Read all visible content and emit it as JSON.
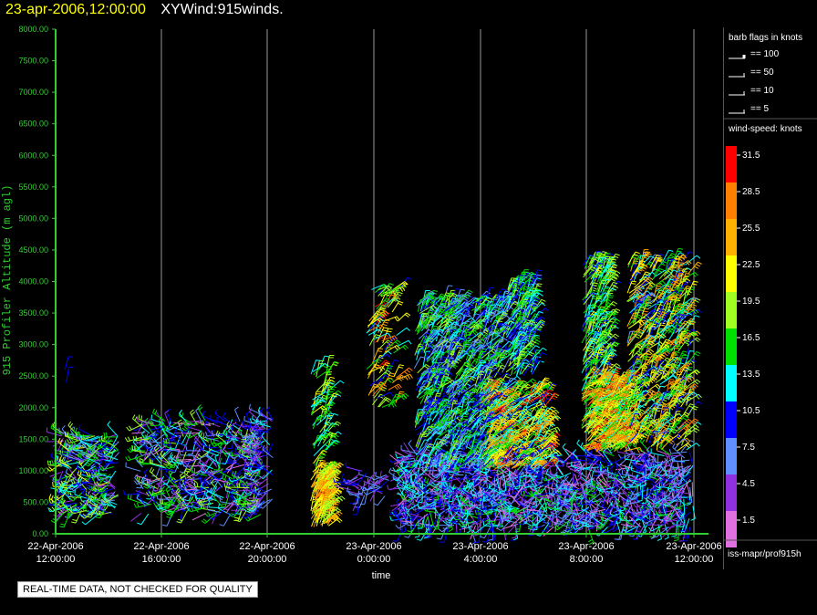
{
  "header": {
    "date": "23-apr-2006",
    "sep": ",",
    "time": "12:00:00",
    "product": "XYWind:915winds."
  },
  "legend": {
    "barb_title": "barb flags in knots",
    "barb_entries": [
      "== 100",
      "== 50",
      "== 10",
      "== 5"
    ],
    "speed_title": "wind-speed: knots",
    "speed_labels": [
      "31.5",
      "28.5",
      "25.5",
      "22.5",
      "19.5",
      "16.5",
      "13.5",
      "10.5",
      "7.5",
      "4.5",
      "1.5"
    ],
    "speed_colors": [
      "#ff0000",
      "#ff8000",
      "#ffb000",
      "#ffff00",
      "#a0ff20",
      "#00e000",
      "#00ffff",
      "#0000ff",
      "#6090ff",
      "#9030e0",
      "#e070e0"
    ],
    "source": "iss-mapr/prof915h"
  },
  "footer": {
    "qc_note": "REAL-TIME DATA, NOT CHECKED FOR QUALITY"
  },
  "colors": {
    "axis": "#33cc33",
    "grid": "#999999",
    "tick_label": "#33cc33",
    "x_label": "#ffffff",
    "title_date": "#ffff00",
    "title_product": "#ffffff"
  },
  "chart_data": {
    "type": "scatter",
    "subtype": "wind-barb time-height",
    "title": "23-apr-2006,12:00:00  XYWind:915winds.",
    "xlabel": "time",
    "ylabel": "915 Profiler Altitude (m agl)",
    "ylim": [
      0,
      8000
    ],
    "y_ticks": [
      "0.00",
      "500.00",
      "1000.00",
      "1500.00",
      "2000.00",
      "2500.00",
      "3000.00",
      "3500.00",
      "4000.00",
      "4500.00",
      "5000.00",
      "5500.00",
      "6000.00",
      "6500.00",
      "7000.00",
      "7500.00",
      "8000.00"
    ],
    "x_ticks": [
      {
        "date": "22-Apr-2006",
        "time": "12:00:00"
      },
      {
        "date": "22-Apr-2006",
        "time": "16:00:00"
      },
      {
        "date": "22-Apr-2006",
        "time": "20:00:00"
      },
      {
        "date": "23-Apr-2006",
        "time": "0:00:00"
      },
      {
        "date": "23-Apr-2006",
        "time": "4:00:00"
      },
      {
        "date": "23-Apr-2006",
        "time": "8:00:00"
      },
      {
        "date": "23-Apr-2006",
        "time": "12:00:00"
      }
    ],
    "grid": true,
    "color_scale": "wind-speed (knots)",
    "series": [
      {
        "time_range": [
          "22-Apr-2006 12:00",
          "22-Apr-2006 14:30"
        ],
        "altitude_range": [
          300,
          1600
        ],
        "dominant_speed": [
          4.5,
          22.5
        ]
      },
      {
        "time_range": [
          "22-Apr-2006 14:30",
          "22-Apr-2006 20:00"
        ],
        "altitude_range": [
          300,
          1900
        ],
        "dominant_speed": [
          1.5,
          22.5
        ]
      },
      {
        "time_range": [
          "22-Apr-2006 21:40",
          "22-Apr-2006 22:30"
        ],
        "altitude_range": [
          100,
          2700
        ],
        "dominant_speed": [
          16.5,
          28.5
        ]
      },
      {
        "time_range": [
          "23-Apr-2006 0:00",
          "23-Apr-2006 1:30"
        ],
        "altitude_range": [
          2000,
          3900
        ],
        "dominant_speed": [
          10.5,
          31.5
        ]
      },
      {
        "time_range": [
          "23-Apr-2006 1:30",
          "23-Apr-2006 12:00"
        ],
        "altitude_range": [
          100,
          4300
        ],
        "dominant_speed": [
          1.5,
          31.5
        ]
      }
    ]
  }
}
